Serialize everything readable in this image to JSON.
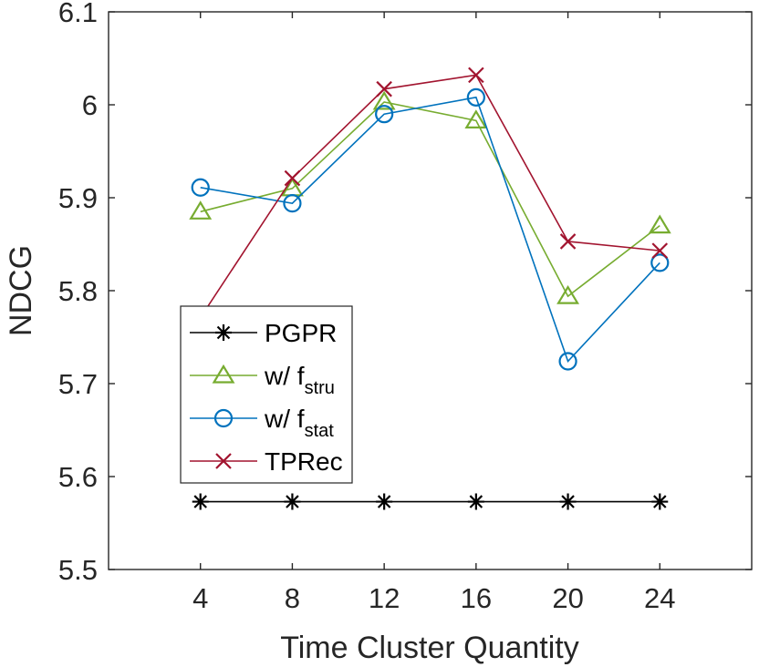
{
  "chart_data": {
    "type": "line",
    "xlabel": "Time Cluster Quantity",
    "ylabel": "NDCG",
    "x": [
      4,
      8,
      12,
      16,
      20,
      24
    ],
    "xlim": [
      0,
      28
    ],
    "ylim": [
      5.5,
      6.1
    ],
    "xticks": [
      "4",
      "8",
      "12",
      "16",
      "20",
      "24"
    ],
    "yticks": [
      "5.5",
      "5.6",
      "5.7",
      "5.8",
      "5.9",
      "6",
      "6.1"
    ],
    "grid": false,
    "legend_position": "lower-left",
    "series": [
      {
        "name": "PGPR",
        "values": [
          5.573,
          5.573,
          5.573,
          5.573,
          5.573,
          5.573
        ],
        "color": "#000000",
        "marker": "asterisk"
      },
      {
        "name": "w/ f",
        "name_sub": "stru",
        "values": [
          5.885,
          5.91,
          6.003,
          5.983,
          5.794,
          5.87
        ],
        "color": "#77AC30",
        "marker": "triangle"
      },
      {
        "name": "w/ f",
        "name_sub": "stat",
        "values": [
          5.911,
          5.894,
          5.99,
          6.008,
          5.724,
          5.83
        ],
        "color": "#0072BD",
        "marker": "circle"
      },
      {
        "name": "TPRec",
        "values": [
          5.771,
          5.921,
          6.017,
          6.032,
          5.853,
          5.843
        ],
        "color": "#A2142F",
        "marker": "x"
      }
    ]
  }
}
